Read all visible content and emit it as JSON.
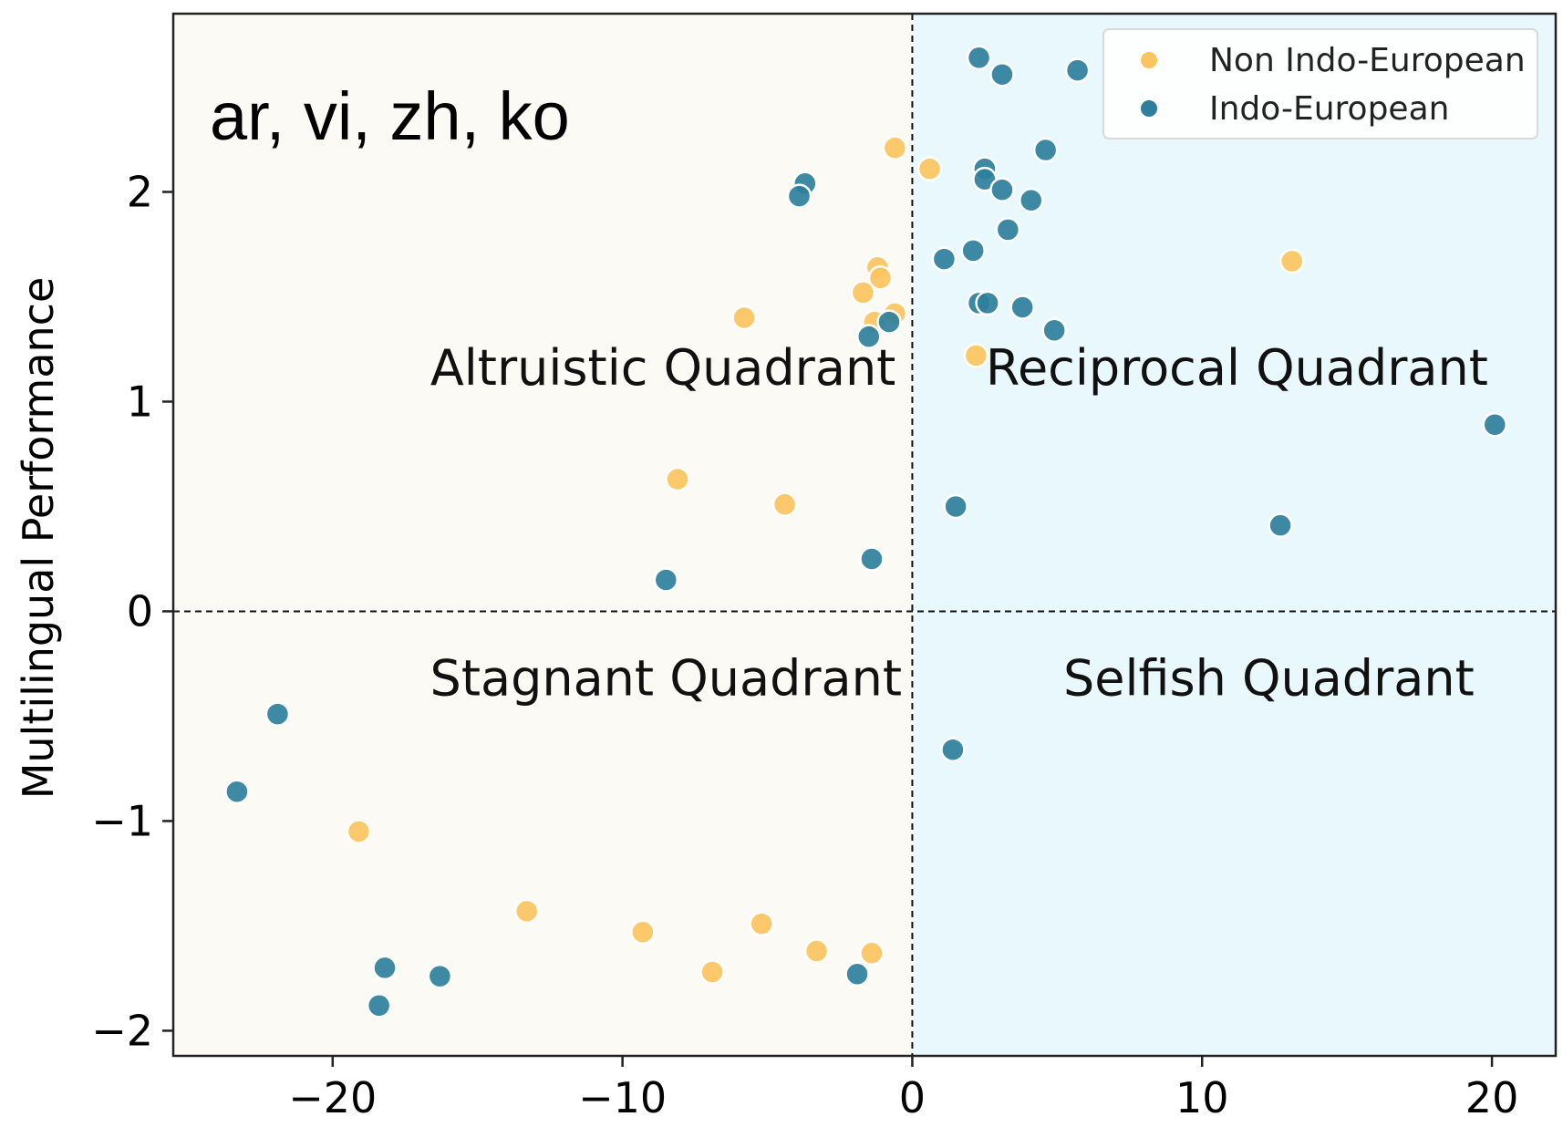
{
  "chart_data": {
    "type": "scatter",
    "title": "ar, vi, zh, ko",
    "xlabel": "",
    "ylabel": "Multilingual Performance",
    "xlim": [
      -25.5,
      22.2
    ],
    "ylim": [
      -2.12,
      2.85
    ],
    "x_ticks": [
      -20,
      -10,
      0,
      10,
      20
    ],
    "y_ticks": [
      -2,
      -1,
      0,
      1,
      2
    ],
    "x_tick_labels": [
      "−20",
      "−10",
      "0",
      "10",
      "20"
    ],
    "y_tick_labels": [
      "−2",
      "−1",
      "0",
      "1",
      "2"
    ],
    "grid": false,
    "legend_position": "top-right",
    "quadrants": {
      "left_background": "#fcfaf4",
      "right_background": "#e9f8fd",
      "labels": [
        {
          "name": "altruistic",
          "text": "Altruistic Quadrant",
          "x": -8.6,
          "y": 1.08
        },
        {
          "name": "reciprocal",
          "text": "Reciprocal Quadrant",
          "x": 11.2,
          "y": 1.08
        },
        {
          "name": "stagnant",
          "text": "Stagnant Quadrant",
          "x": -8.5,
          "y": -0.4
        },
        {
          "name": "selfish",
          "text": "Selfish Quadrant",
          "x": 12.3,
          "y": -0.4
        }
      ]
    },
    "series": [
      {
        "name": "Non Indo-European",
        "color": "#fbc45e",
        "points": [
          {
            "x": -0.6,
            "y": 2.21
          },
          {
            "x": 0.6,
            "y": 2.11
          },
          {
            "x": -1.2,
            "y": 1.64
          },
          {
            "x": -1.1,
            "y": 1.59
          },
          {
            "x": -1.7,
            "y": 1.52
          },
          {
            "x": -5.8,
            "y": 1.4
          },
          {
            "x": -1.3,
            "y": 1.38
          },
          {
            "x": -0.6,
            "y": 1.42
          },
          {
            "x": 2.2,
            "y": 1.22
          },
          {
            "x": 13.1,
            "y": 1.67
          },
          {
            "x": -8.1,
            "y": 0.63
          },
          {
            "x": -4.4,
            "y": 0.51
          },
          {
            "x": -19.1,
            "y": -1.05
          },
          {
            "x": -13.3,
            "y": -1.43
          },
          {
            "x": -9.3,
            "y": -1.53
          },
          {
            "x": -5.2,
            "y": -1.49
          },
          {
            "x": -6.9,
            "y": -1.72
          },
          {
            "x": -3.3,
            "y": -1.62
          },
          {
            "x": -1.4,
            "y": -1.63
          }
        ]
      },
      {
        "name": "Indo-European",
        "color": "#2e7f9b",
        "points": [
          {
            "x": 2.3,
            "y": 2.64
          },
          {
            "x": 3.1,
            "y": 2.56
          },
          {
            "x": 5.7,
            "y": 2.58
          },
          {
            "x": 4.6,
            "y": 2.2
          },
          {
            "x": 2.5,
            "y": 2.11
          },
          {
            "x": 2.5,
            "y": 2.06
          },
          {
            "x": 3.1,
            "y": 2.01
          },
          {
            "x": 4.1,
            "y": 1.96
          },
          {
            "x": 3.3,
            "y": 1.82
          },
          {
            "x": 2.1,
            "y": 1.72
          },
          {
            "x": 1.1,
            "y": 1.68
          },
          {
            "x": 2.3,
            "y": 1.47
          },
          {
            "x": 2.6,
            "y": 1.47
          },
          {
            "x": 3.8,
            "y": 1.45
          },
          {
            "x": 4.9,
            "y": 1.34
          },
          {
            "x": -3.7,
            "y": 2.04
          },
          {
            "x": -3.9,
            "y": 1.98
          },
          {
            "x": -0.8,
            "y": 1.38
          },
          {
            "x": -1.5,
            "y": 1.31
          },
          {
            "x": 20.1,
            "y": 0.89
          },
          {
            "x": 1.5,
            "y": 0.5
          },
          {
            "x": 12.7,
            "y": 0.41
          },
          {
            "x": -1.4,
            "y": 0.25
          },
          {
            "x": -8.5,
            "y": 0.15
          },
          {
            "x": 1.4,
            "y": -0.66
          },
          {
            "x": -21.9,
            "y": -0.49
          },
          {
            "x": -23.3,
            "y": -0.86
          },
          {
            "x": -18.2,
            "y": -1.7
          },
          {
            "x": -16.3,
            "y": -1.74
          },
          {
            "x": -18.4,
            "y": -1.88
          },
          {
            "x": -1.9,
            "y": -1.73
          }
        ]
      }
    ]
  }
}
